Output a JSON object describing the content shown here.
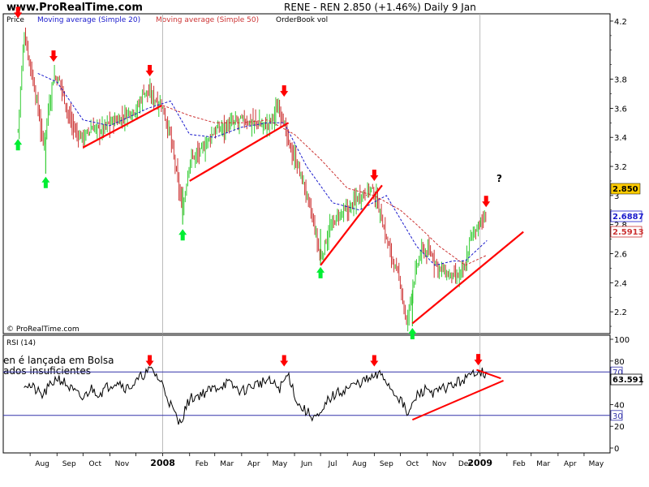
{
  "header": {
    "site": "www.ProRealTime.com",
    "quote": "RENE - REN   2.850 (+1.46%)   Daily  9 Jan"
  },
  "legend": {
    "price": "Price",
    "ma20": "Moving average (Simple 20)",
    "ma50": "Moving average (Simple 50)",
    "orderbook": "OrderBook vol"
  },
  "watermark": "© ProRealTime.com",
  "rsi_title": "RSI (14)",
  "overlay_text": [
    "en é lançada em Bolsa",
    "ados insuficientes"
  ],
  "question_mark": "?",
  "colors": {
    "up_bar": "#33cc33",
    "down_bar": "#cc3333",
    "ma20": "#1a1acc",
    "ma50": "#cc3333",
    "trendline": "#ff0000",
    "arrow_red": "#ff0000",
    "arrow_green": "#00ee33",
    "rsi_line": "#000000",
    "rsi_level": "#3333aa"
  },
  "chart_data": [
    {
      "type": "line",
      "title": "RENE - REN",
      "ylim": [
        2.05,
        4.25
      ],
      "yticks": [
        2.2,
        2.4,
        2.6,
        2.8,
        3,
        3.2,
        3.4,
        3.6,
        3.8,
        4.2
      ],
      "ytick_labels": [
        "2.2",
        "2.4",
        "2.6",
        "2.8",
        "3",
        "3.2",
        "3.4",
        "3.6",
        "3.8",
        "4.2"
      ],
      "x_months": [
        "Aug",
        "Sep",
        "Oct",
        "Nov",
        "2008",
        "Feb",
        "Mar",
        "Apr",
        "May",
        "Jun",
        "Jul",
        "Aug",
        "Sep",
        "Oct",
        "Nov",
        "Dec",
        "2009",
        "Feb",
        "Mar",
        "Apr",
        "May"
      ],
      "series": [
        {
          "name": "Price",
          "x": [
            "2007-07-18",
            "2007-07-25",
            "2007-08-01",
            "2007-08-10",
            "2007-08-16",
            "2007-08-28",
            "2007-09-05",
            "2007-09-14",
            "2007-09-24",
            "2007-10-02",
            "2007-10-12",
            "2007-10-22",
            "2007-11-01",
            "2007-11-12",
            "2007-11-22",
            "2007-12-03",
            "2007-12-10",
            "2007-12-20",
            "2007-12-31",
            "2008-01-10",
            "2008-01-18",
            "2008-01-24",
            "2008-02-01",
            "2008-02-14",
            "2008-03-01",
            "2008-03-15",
            "2008-04-01",
            "2008-04-15",
            "2008-05-01",
            "2008-05-15",
            "2008-05-25",
            "2008-06-05",
            "2008-06-15",
            "2008-06-25",
            "2008-07-01",
            "2008-07-10",
            "2008-07-20",
            "2008-08-01",
            "2008-08-15",
            "2008-08-28",
            "2008-09-05",
            "2008-09-15",
            "2008-09-25",
            "2008-10-01",
            "2008-10-08",
            "2008-10-15",
            "2008-10-25",
            "2008-11-05",
            "2008-11-15",
            "2008-11-25",
            "2008-12-05",
            "2008-12-15",
            "2008-12-20",
            "2008-12-30",
            "2009-01-09"
          ],
          "values": [
            3.45,
            4.12,
            3.9,
            3.6,
            3.35,
            3.82,
            3.78,
            3.55,
            3.42,
            3.4,
            3.47,
            3.45,
            3.5,
            3.52,
            3.57,
            3.6,
            3.72,
            3.68,
            3.62,
            3.4,
            3.1,
            2.9,
            3.25,
            3.3,
            3.45,
            3.48,
            3.52,
            3.5,
            3.48,
            3.62,
            3.35,
            3.2,
            3.0,
            2.75,
            2.55,
            2.75,
            2.85,
            2.9,
            3.0,
            3.05,
            2.95,
            2.7,
            2.5,
            2.4,
            2.1,
            2.38,
            2.62,
            2.6,
            2.5,
            2.45,
            2.43,
            2.5,
            2.7,
            2.8,
            2.85
          ]
        },
        {
          "name": "Moving average (Simple 20)",
          "x": [
            "2007-08-10",
            "2007-09-01",
            "2007-10-01",
            "2007-11-01",
            "2007-12-15",
            "2008-01-10",
            "2008-02-01",
            "2008-03-01",
            "2008-04-01",
            "2008-05-01",
            "2008-05-20",
            "2008-06-15",
            "2008-07-15",
            "2008-08-15",
            "2008-09-15",
            "2008-10-05",
            "2008-10-20",
            "2008-11-10",
            "2008-12-01",
            "2008-12-15",
            "2009-01-09"
          ],
          "values": [
            3.84,
            3.78,
            3.52,
            3.48,
            3.6,
            3.65,
            3.42,
            3.4,
            3.47,
            3.5,
            3.5,
            3.2,
            2.95,
            2.9,
            3.0,
            2.8,
            2.65,
            2.52,
            2.55,
            2.55,
            2.69
          ]
        },
        {
          "name": "Moving average (Simple 50)",
          "x": [
            "2008-01-01",
            "2008-02-01",
            "2008-03-01",
            "2008-04-01",
            "2008-05-01",
            "2008-06-01",
            "2008-07-01",
            "2008-08-01",
            "2008-09-01",
            "2008-10-01",
            "2008-10-20",
            "2008-11-15",
            "2008-12-15",
            "2009-01-09"
          ],
          "values": [
            3.62,
            3.55,
            3.5,
            3.5,
            3.52,
            3.42,
            3.25,
            3.05,
            3.0,
            2.9,
            2.8,
            2.65,
            2.52,
            2.59
          ]
        }
      ],
      "annotations": [
        "2.850",
        "2.6887",
        "2.5913"
      ]
    },
    {
      "type": "line",
      "title": "RSI (14)",
      "ylim": [
        0,
        100
      ],
      "yticks": [
        0,
        20,
        40,
        60,
        80,
        100
      ],
      "ytick_labels": [
        "0",
        "20",
        "40",
        "60",
        "80",
        "100"
      ],
      "levels": [
        {
          "value": 30,
          "label": "30"
        },
        {
          "value": 70,
          "label": "70"
        }
      ],
      "series": [
        {
          "name": "RSI (14)",
          "x": [
            "2007-07-25",
            "2007-08-05",
            "2007-08-15",
            "2007-08-25",
            "2007-09-01",
            "2007-09-10",
            "2007-09-20",
            "2007-10-01",
            "2007-10-10",
            "2007-10-20",
            "2007-11-01",
            "2007-11-10",
            "2007-11-20",
            "2007-12-01",
            "2007-12-10",
            "2007-12-20",
            "2008-01-01",
            "2008-01-10",
            "2008-01-20",
            "2008-02-01",
            "2008-02-15",
            "2008-03-01",
            "2008-03-15",
            "2008-04-01",
            "2008-04-15",
            "2008-05-01",
            "2008-05-15",
            "2008-05-25",
            "2008-06-05",
            "2008-06-20",
            "2008-07-01",
            "2008-07-10",
            "2008-07-20",
            "2008-08-01",
            "2008-08-15",
            "2008-09-01",
            "2008-09-10",
            "2008-09-20",
            "2008-10-01",
            "2008-10-10",
            "2008-10-20",
            "2008-11-01",
            "2008-11-10",
            "2008-11-20",
            "2008-12-01",
            "2008-12-10",
            "2008-12-20",
            "2008-12-28",
            "2009-01-05",
            "2009-01-09"
          ],
          "values": [
            60,
            55,
            48,
            58,
            65,
            60,
            52,
            45,
            55,
            50,
            58,
            62,
            55,
            60,
            68,
            72,
            58,
            40,
            22,
            45,
            50,
            55,
            60,
            52,
            58,
            62,
            55,
            68,
            40,
            30,
            28,
            45,
            50,
            55,
            60,
            65,
            68,
            55,
            45,
            30,
            48,
            55,
            50,
            55,
            58,
            62,
            65,
            72,
            70,
            64
          ]
        }
      ],
      "annotations": [
        "63.591"
      ]
    }
  ]
}
